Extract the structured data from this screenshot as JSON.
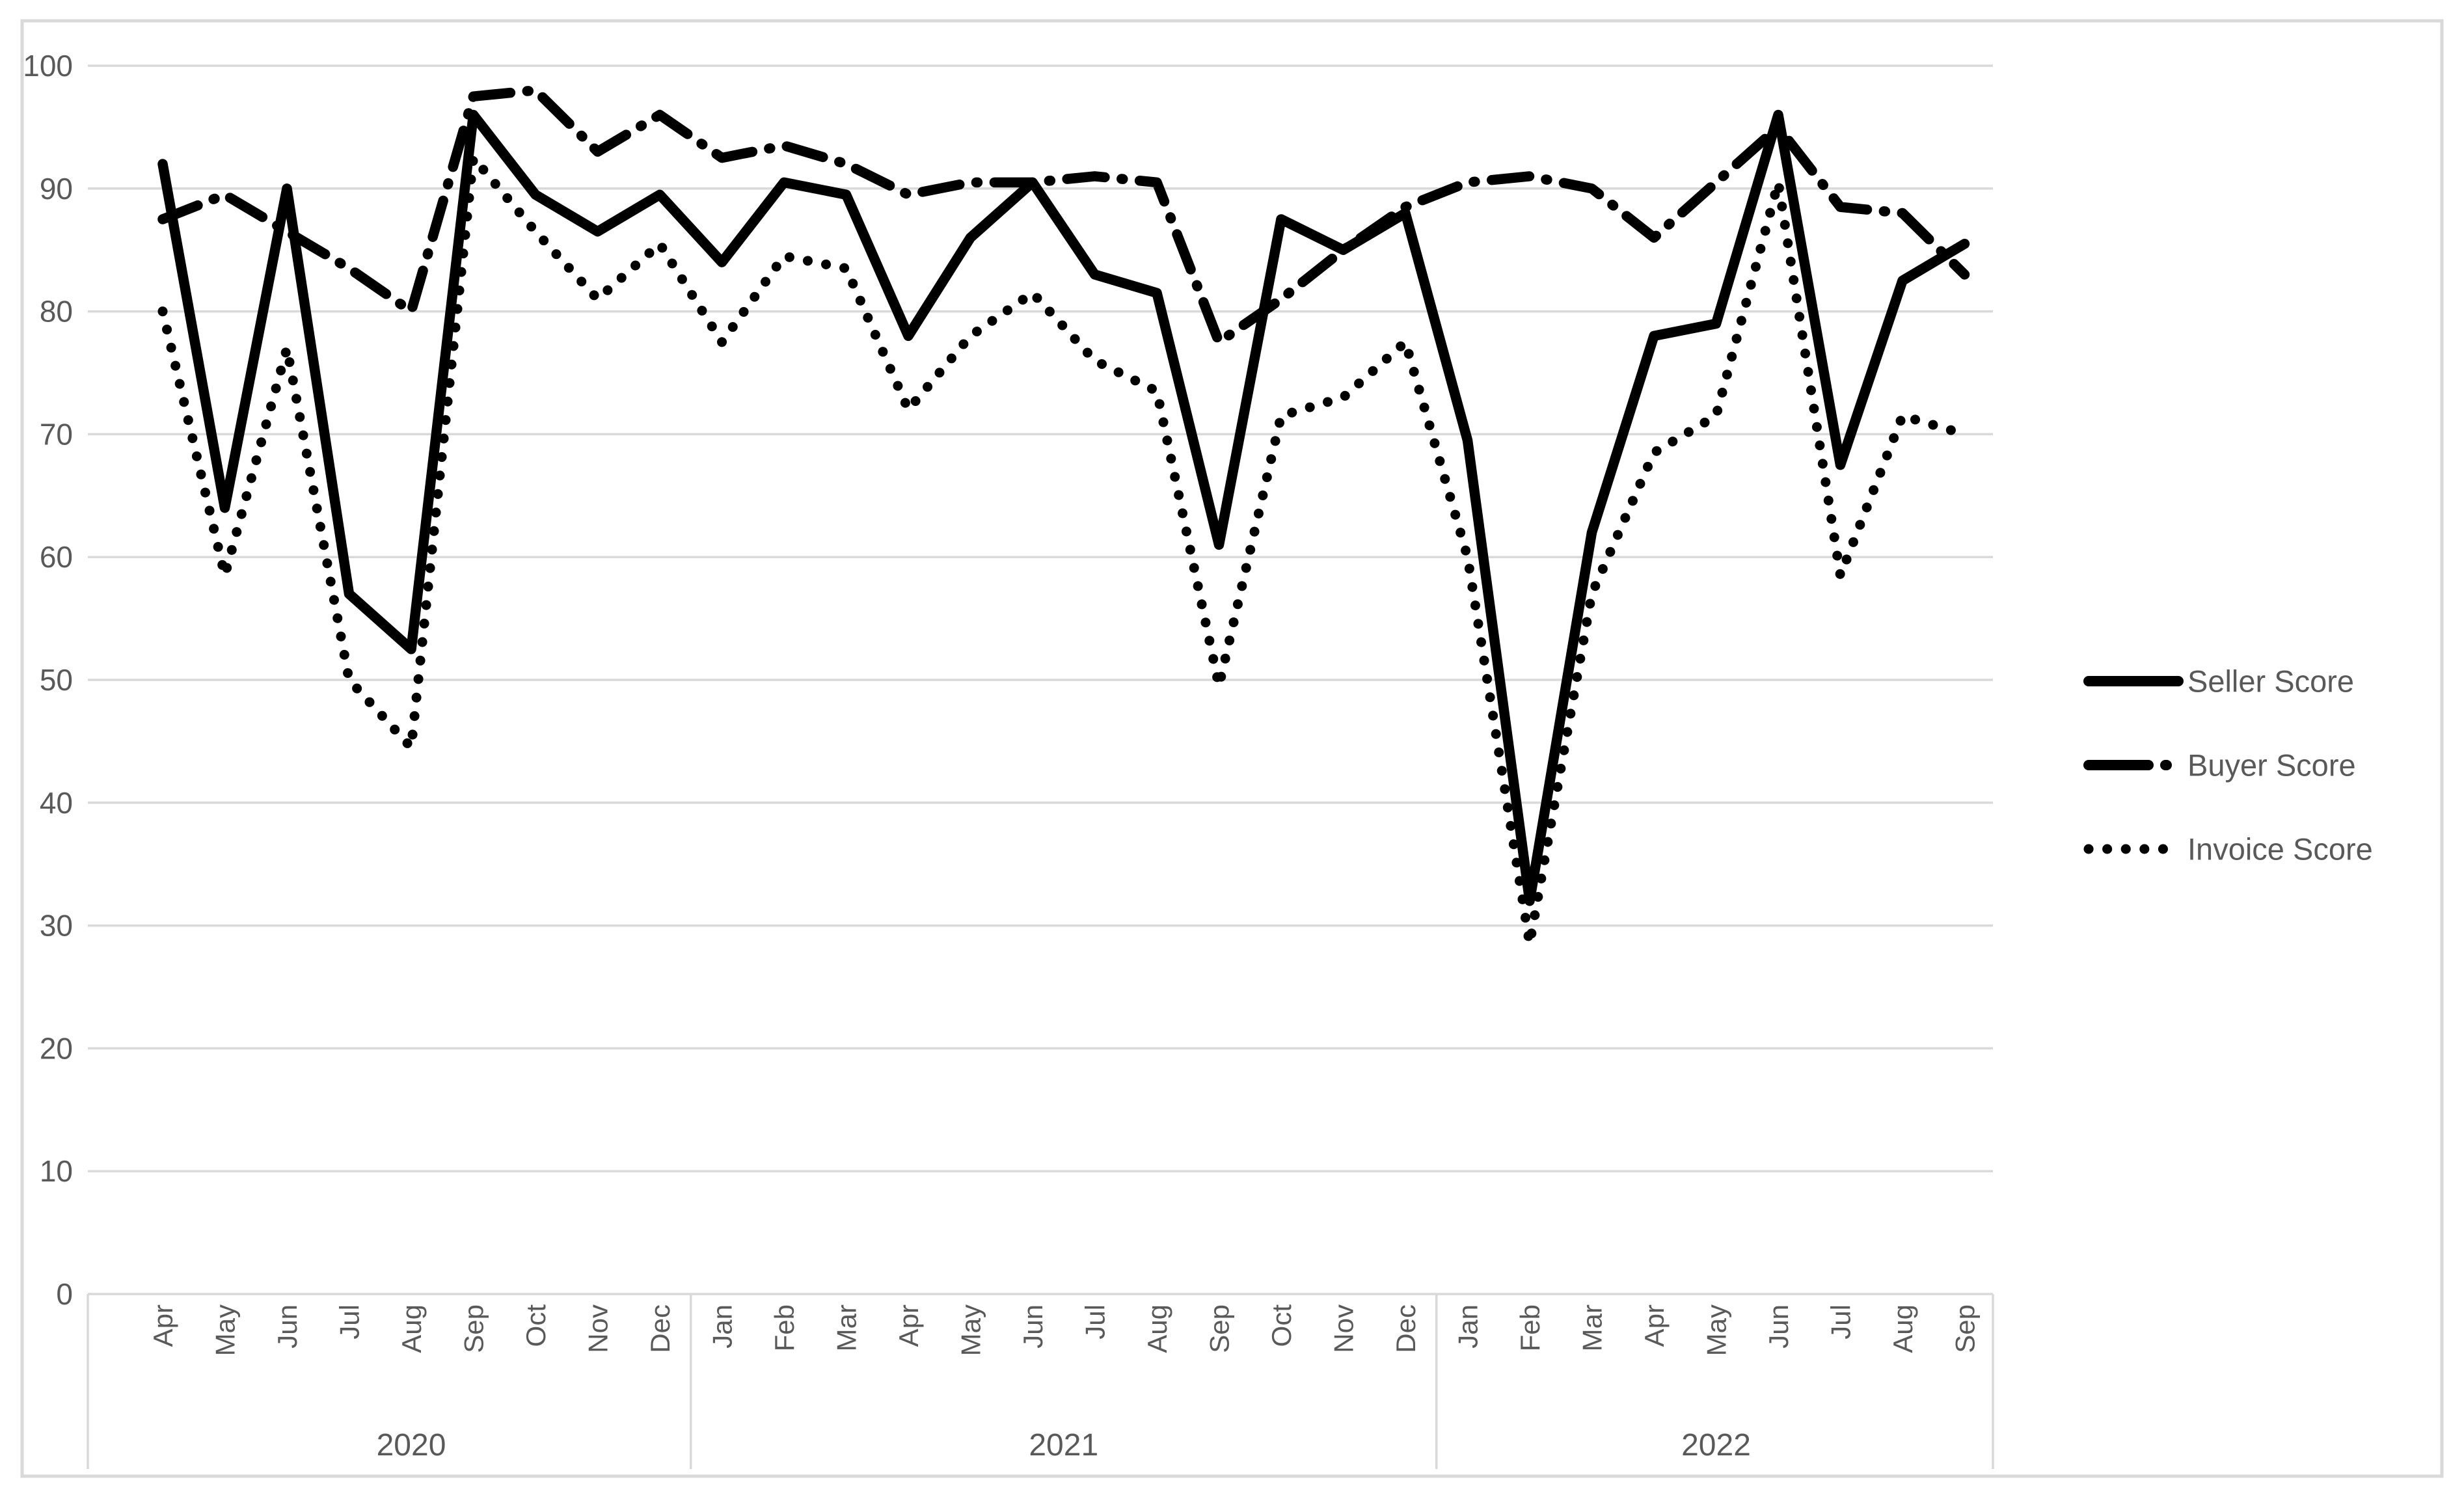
{
  "chart_data": {
    "type": "line",
    "x_labels": [
      "Apr",
      "May",
      "Jun",
      "Jul",
      "Aug",
      "Sep",
      "Oct",
      "Nov",
      "Dec",
      "Jan",
      "Feb",
      "Mar",
      "Apr",
      "May",
      "Jun",
      "Jul",
      "Aug",
      "Sep",
      "Oct",
      "Nov",
      "Dec",
      "Jan",
      "Feb",
      "Mar",
      "Apr",
      "May",
      "Jun",
      "Jul",
      "Aug",
      "Sep"
    ],
    "year_groups": [
      {
        "label": "2020",
        "start": 0,
        "count": 9
      },
      {
        "label": "2021",
        "start": 9,
        "count": 12
      },
      {
        "label": "2022",
        "start": 21,
        "count": 9
      }
    ],
    "y_ticks": [
      0,
      10,
      20,
      30,
      40,
      50,
      60,
      70,
      80,
      90,
      100
    ],
    "ylim": [
      0,
      100
    ],
    "grid": true,
    "legend_position": "right",
    "series": [
      {
        "name": "Seller Score",
        "style": "solid",
        "values": [
          92,
          64,
          90,
          57,
          52.5,
          96,
          89.5,
          86.5,
          89.5,
          84,
          90.5,
          89.5,
          78,
          86,
          90.5,
          83,
          81.5,
          61,
          87.5,
          85,
          88,
          69.5,
          32,
          62,
          78,
          79,
          96,
          67.5,
          82.5,
          85.5
        ]
      },
      {
        "name": "Buyer Score",
        "style": "dash-dot",
        "values": [
          87.5,
          89.5,
          86.5,
          83.5,
          80,
          97.5,
          98,
          93,
          96,
          92.5,
          93.5,
          92,
          89.5,
          90.5,
          90.5,
          91,
          90.5,
          77.5,
          81,
          85,
          88.5,
          90.5,
          91,
          90,
          86,
          90.5,
          95,
          88.5,
          88,
          83
        ]
      },
      {
        "name": "Invoice Score",
        "style": "dotted",
        "values": [
          80,
          58.5,
          77,
          50,
          44.5,
          92.5,
          86.5,
          81,
          85.5,
          77.5,
          84.5,
          83.5,
          72,
          78,
          81.5,
          76,
          73.5,
          49.5,
          71.5,
          73,
          77.5,
          60,
          28.5,
          57,
          68.5,
          71.5,
          90.5,
          58.5,
          71.5,
          70
        ]
      }
    ]
  },
  "colors": {
    "line": "#000000",
    "grid": "#d9d9d9",
    "border": "#d9d9d9",
    "text": "#595959",
    "background": "#ffffff"
  }
}
